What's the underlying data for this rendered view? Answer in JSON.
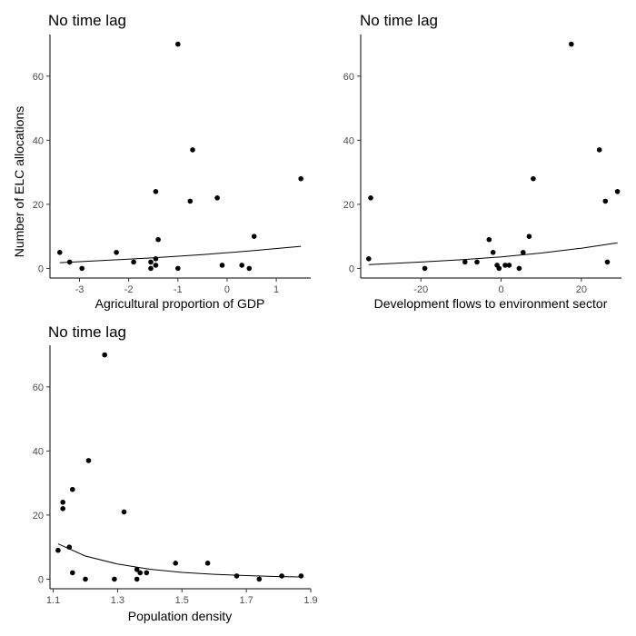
{
  "chart_data": [
    {
      "type": "scatter",
      "title": "No time lag",
      "xlabel": "Agricultural proportion of GDP",
      "ylabel": "Number of ELC allocations",
      "xlim": [
        -3.6,
        1.7
      ],
      "ylim": [
        -3,
        73
      ],
      "xticks": [
        -3,
        -2,
        -1,
        0,
        1
      ],
      "yticks": [
        0,
        20,
        40,
        60
      ],
      "grid": false,
      "points": [
        {
          "x": -3.4,
          "y": 5
        },
        {
          "x": -3.2,
          "y": 2
        },
        {
          "x": -2.95,
          "y": 0
        },
        {
          "x": -2.25,
          "y": 5
        },
        {
          "x": -1.9,
          "y": 2
        },
        {
          "x": -1.55,
          "y": 2
        },
        {
          "x": -1.55,
          "y": 0
        },
        {
          "x": -1.45,
          "y": 1
        },
        {
          "x": -1.45,
          "y": 24
        },
        {
          "x": -1.4,
          "y": 9
        },
        {
          "x": -1.45,
          "y": 3
        },
        {
          "x": -1.0,
          "y": 70
        },
        {
          "x": -1.0,
          "y": 0
        },
        {
          "x": -0.75,
          "y": 21
        },
        {
          "x": -0.7,
          "y": 37
        },
        {
          "x": -0.2,
          "y": 22
        },
        {
          "x": -0.1,
          "y": 1
        },
        {
          "x": 0.3,
          "y": 1
        },
        {
          "x": 0.45,
          "y": 0
        },
        {
          "x": 0.55,
          "y": 10
        },
        {
          "x": 1.5,
          "y": 28
        }
      ],
      "fit": {
        "x": [
          -3.4,
          -2.5,
          -1.5,
          -0.5,
          0.5,
          1.5
        ],
        "y": [
          1.8,
          2.5,
          3.3,
          4.3,
          5.5,
          6.9
        ]
      }
    },
    {
      "type": "scatter",
      "title": "No time lag",
      "xlabel": "Development flows to environment sector",
      "ylabel": "",
      "xlim": [
        -35,
        30
      ],
      "ylim": [
        -3,
        73
      ],
      "xticks": [
        -20,
        0,
        20
      ],
      "yticks": [
        0,
        20,
        40,
        60
      ],
      "grid": false,
      "points": [
        {
          "x": -33,
          "y": 3
        },
        {
          "x": -32.5,
          "y": 22
        },
        {
          "x": -19,
          "y": 0
        },
        {
          "x": -9,
          "y": 2
        },
        {
          "x": -6,
          "y": 2
        },
        {
          "x": -3,
          "y": 9
        },
        {
          "x": -2,
          "y": 5
        },
        {
          "x": -1,
          "y": 1
        },
        {
          "x": -0.5,
          "y": 0
        },
        {
          "x": 1,
          "y": 1
        },
        {
          "x": 2,
          "y": 1
        },
        {
          "x": 4.5,
          "y": 0
        },
        {
          "x": 5.5,
          "y": 5
        },
        {
          "x": 7,
          "y": 10
        },
        {
          "x": 8,
          "y": 28
        },
        {
          "x": 17.5,
          "y": 70
        },
        {
          "x": 24.5,
          "y": 37
        },
        {
          "x": 26,
          "y": 21
        },
        {
          "x": 26.5,
          "y": 2
        },
        {
          "x": 29,
          "y": 24
        }
      ],
      "fit": {
        "x": [
          -33,
          -20,
          -10,
          0,
          10,
          20,
          29
        ],
        "y": [
          1.2,
          2.0,
          2.7,
          3.6,
          4.8,
          6.3,
          8.0
        ]
      }
    },
    {
      "type": "scatter",
      "title": "No time lag",
      "xlabel": "Population density",
      "ylabel": "",
      "xlim": [
        1.09,
        1.9
      ],
      "ylim": [
        -3,
        73
      ],
      "xticks": [
        "1.1",
        "1.3",
        "1.5",
        "1.7",
        "1.9"
      ],
      "yticks": [
        0,
        20,
        40,
        60
      ],
      "grid": false,
      "points": [
        {
          "x": 1.115,
          "y": 9
        },
        {
          "x": 1.13,
          "y": 24
        },
        {
          "x": 1.13,
          "y": 22
        },
        {
          "x": 1.15,
          "y": 10
        },
        {
          "x": 1.16,
          "y": 28
        },
        {
          "x": 1.16,
          "y": 2
        },
        {
          "x": 1.2,
          "y": 0
        },
        {
          "x": 1.21,
          "y": 37
        },
        {
          "x": 1.26,
          "y": 70
        },
        {
          "x": 1.29,
          "y": 0
        },
        {
          "x": 1.32,
          "y": 21
        },
        {
          "x": 1.36,
          "y": 3
        },
        {
          "x": 1.36,
          "y": 0
        },
        {
          "x": 1.37,
          "y": 2
        },
        {
          "x": 1.39,
          "y": 2
        },
        {
          "x": 1.48,
          "y": 5
        },
        {
          "x": 1.58,
          "y": 5
        },
        {
          "x": 1.67,
          "y": 1
        },
        {
          "x": 1.74,
          "y": 0
        },
        {
          "x": 1.81,
          "y": 1
        },
        {
          "x": 1.87,
          "y": 1
        }
      ],
      "fit": {
        "x": [
          1.115,
          1.2,
          1.3,
          1.4,
          1.5,
          1.6,
          1.7,
          1.8,
          1.87
        ],
        "y": [
          11,
          7.2,
          4.7,
          3.1,
          2.1,
          1.5,
          1.1,
          0.8,
          0.7
        ]
      }
    }
  ]
}
